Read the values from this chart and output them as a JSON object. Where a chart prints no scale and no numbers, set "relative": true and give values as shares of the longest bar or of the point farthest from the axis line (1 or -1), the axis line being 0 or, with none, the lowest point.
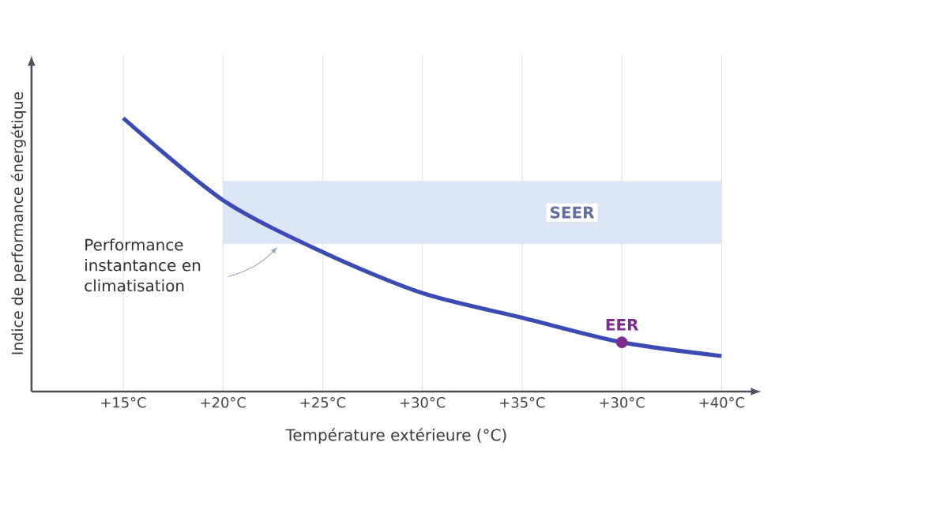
{
  "chart_data": {
    "type": "line",
    "xlabel": "Température extérieure (°C)",
    "ylabel": "Indice de performance énergétique",
    "categories": [
      "+15°C",
      "+20°C",
      "+25°C",
      "+30°C",
      "+35°C",
      "+30°C",
      "+40°C"
    ],
    "relative": true,
    "series": [
      {
        "color": "#3a4cb4",
        "values": [
          1,
          0.7,
          0.51,
          0.36,
          0.27,
          0.18,
          0.13
        ]
      },
      {
        "name": "EER",
        "type": "scatter",
        "color": "#7b2d8e",
        "values": [
          null,
          null,
          null,
          null,
          null,
          0.18,
          null
        ]
      }
    ],
    "bands": [
      {
        "axis": "y",
        "from": 0.54,
        "to": 0.77,
        "label": "SEER",
        "color": "#dde6f4"
      }
    ],
    "annotations": [
      "Performance instantance en climatisation"
    ],
    "grid": "x",
    "line_style": "solid"
  }
}
